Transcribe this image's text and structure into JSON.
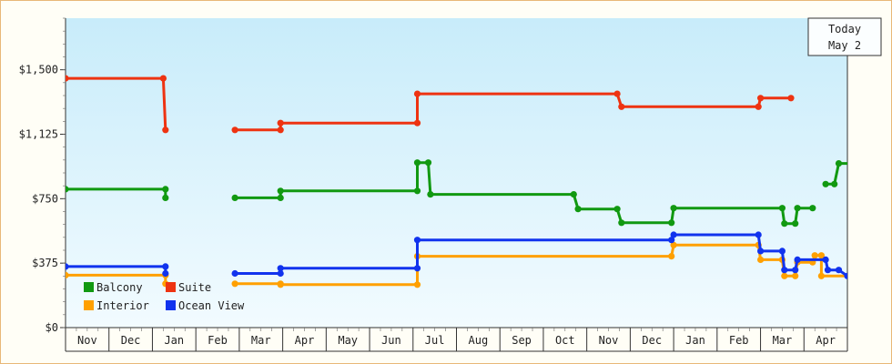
{
  "chart_data": {
    "type": "line",
    "step": true,
    "title": "",
    "xlabel": "",
    "ylabel": "",
    "ylim": [
      0,
      1800
    ],
    "yticks": [
      0,
      375,
      750,
      1125,
      1500
    ],
    "ytick_labels": [
      "$0",
      "$375",
      "$750",
      "$1,125",
      "$1,500"
    ],
    "xlim": [
      -0.5,
      17.5
    ],
    "months": [
      "Nov",
      "Dec",
      "Jan",
      "Feb",
      "Mar",
      "Apr",
      "May",
      "Jun",
      "Jul",
      "Aug",
      "Sep",
      "Oct",
      "Nov",
      "Dec",
      "Jan",
      "Feb",
      "Mar",
      "Apr"
    ],
    "callout": [
      "Today",
      "May 2"
    ],
    "grid": false,
    "background_gradient": [
      "#c8ecfa",
      "#f2fbff"
    ],
    "legend_placement": "bottom-left",
    "series": [
      {
        "name": "Balcony",
        "color": "#119911",
        "segments": [
          [
            [
              -0.5,
              805
            ],
            [
              1.8,
              805
            ],
            [
              1.8,
              755
            ]
          ],
          [
            [
              3.4,
              755
            ],
            [
              4.45,
              755
            ],
            [
              4.45,
              795
            ],
            [
              4.8,
              795
            ],
            [
              4.85,
              795
            ],
            [
              7.6,
              795
            ],
            [
              7.6,
              960
            ],
            [
              7.85,
              960
            ],
            [
              7.9,
              775
            ],
            [
              11.2,
              775
            ],
            [
              11.3,
              690
            ],
            [
              12.2,
              690
            ],
            [
              12.3,
              610
            ],
            [
              13.45,
              610
            ],
            [
              13.5,
              695
            ],
            [
              16.0,
              695
            ],
            [
              16.05,
              605
            ],
            [
              16.3,
              605
            ],
            [
              16.35,
              695
            ],
            [
              16.7,
              695
            ]
          ],
          [
            [
              17.0,
              835
            ],
            [
              17.2,
              835
            ],
            [
              17.3,
              955
            ],
            [
              17.7,
              955
            ],
            [
              17.85,
              955
            ],
            [
              17.85,
              695
            ],
            [
              18.0,
              695
            ],
            [
              18.0,
              830
            ],
            [
              18.05,
              830
            ],
            [
              18.05,
              695
            ],
            [
              18.1,
              695
            ]
          ]
        ]
      },
      {
        "name": "Interior",
        "color": "#ffa000",
        "segments": [
          [
            [
              -0.5,
              305
            ],
            [
              1.8,
              305
            ],
            [
              1.8,
              255
            ]
          ],
          [
            [
              3.4,
              255
            ],
            [
              4.45,
              255
            ],
            [
              4.45,
              250
            ],
            [
              4.8,
              250
            ],
            [
              4.85,
              250
            ],
            [
              7.6,
              250
            ],
            [
              7.6,
              415
            ],
            [
              13.45,
              415
            ],
            [
              13.5,
              480
            ],
            [
              15.45,
              480
            ],
            [
              15.5,
              395
            ],
            [
              16.0,
              395
            ],
            [
              16.05,
              300
            ],
            [
              16.3,
              300
            ],
            [
              16.35,
              380
            ],
            [
              16.7,
              380
            ],
            [
              16.75,
              420
            ],
            [
              16.9,
              420
            ],
            [
              16.9,
              300
            ],
            [
              17.2,
              300
            ],
            [
              17.2,
              300
            ],
            [
              18.0,
              300
            ]
          ]
        ]
      },
      {
        "name": "Suite",
        "color": "#ee3311",
        "segments": [
          [
            [
              -0.5,
              1450
            ],
            [
              1.75,
              1450
            ],
            [
              1.8,
              1150
            ]
          ],
          [
            [
              3.4,
              1150
            ],
            [
              4.45,
              1150
            ],
            [
              4.45,
              1190
            ],
            [
              4.8,
              1190
            ],
            [
              4.85,
              1190
            ],
            [
              7.6,
              1190
            ],
            [
              7.6,
              1360
            ],
            [
              12.2,
              1360
            ],
            [
              12.3,
              1285
            ],
            [
              15.45,
              1285
            ],
            [
              15.5,
              1335
            ],
            [
              16.2,
              1335
            ]
          ]
        ]
      },
      {
        "name": "Ocean View",
        "color": "#1133ee",
        "segments": [
          [
            [
              -0.5,
              355
            ],
            [
              1.8,
              355
            ],
            [
              1.8,
              315
            ]
          ],
          [
            [
              3.4,
              315
            ],
            [
              4.45,
              315
            ],
            [
              4.45,
              345
            ],
            [
              4.8,
              345
            ],
            [
              4.85,
              345
            ],
            [
              7.6,
              345
            ],
            [
              7.6,
              510
            ],
            [
              13.45,
              510
            ],
            [
              13.5,
              540
            ],
            [
              15.45,
              540
            ],
            [
              15.5,
              445
            ],
            [
              16.0,
              445
            ],
            [
              16.05,
              335
            ],
            [
              16.3,
              335
            ],
            [
              16.35,
              395
            ],
            [
              17.0,
              395
            ],
            [
              17.05,
              335
            ],
            [
              17.2,
              335
            ],
            [
              17.3,
              335
            ],
            [
              17.5,
              300
            ],
            [
              17.8,
              300
            ],
            [
              17.8,
              325
            ],
            [
              18.0,
              325
            ]
          ]
        ]
      }
    ]
  }
}
